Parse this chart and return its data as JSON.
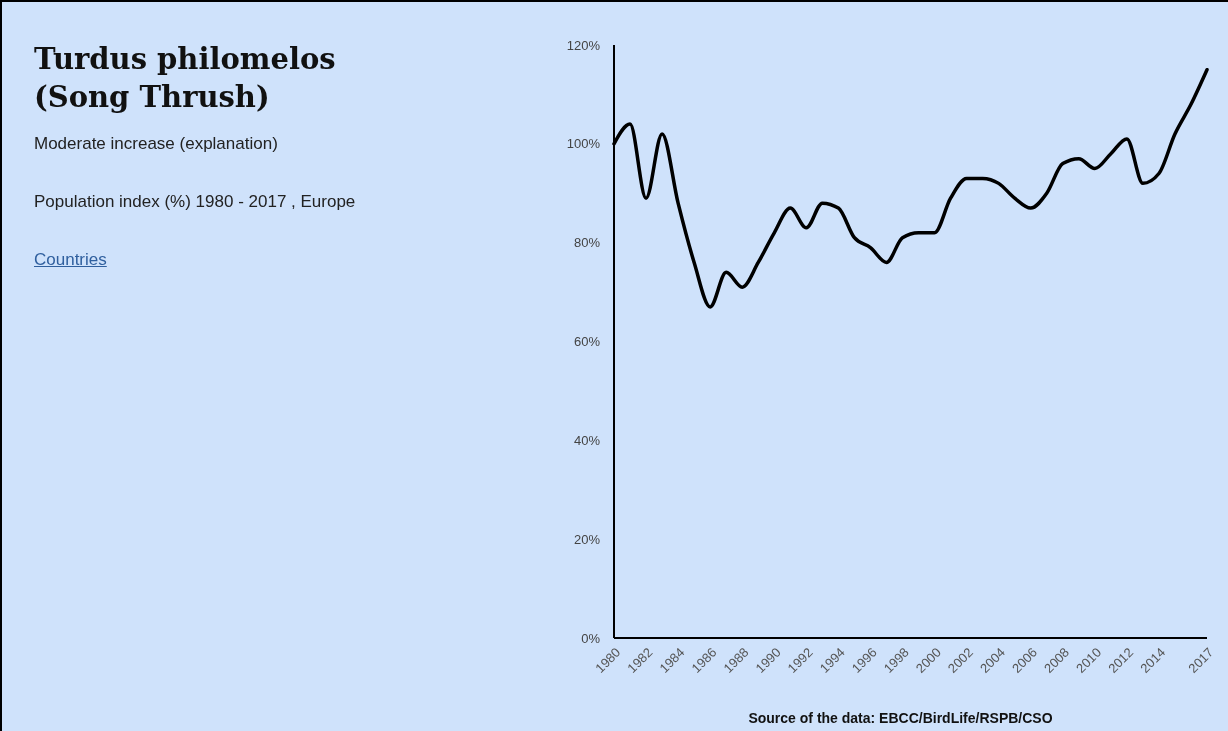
{
  "chart_data": {
    "type": "line",
    "title": "Turdus philomelos (Song Thrush)",
    "subtitle": "Moderate increase (explanation)",
    "annotations": [
      "Population index (%) 1980 - 2017 , Europe",
      "Countries",
      "Source of the data: EBCC/BirdLife/RSPB/CSO"
    ],
    "categories": [
      "1980",
      null,
      "1982",
      null,
      "1984",
      null,
      "1986",
      null,
      "1988",
      null,
      "1990",
      null,
      "1992",
      null,
      "1994",
      null,
      "1996",
      null,
      "1998",
      null,
      "2000",
      null,
      "2002",
      null,
      "2004",
      null,
      "2006",
      null,
      "2008",
      null,
      "2010",
      null,
      "2012",
      null,
      "2014",
      null,
      null,
      "2017"
    ],
    "series": [
      {
        "color": "#000000",
        "values": [
          100,
          104,
          89,
          102,
          88,
          76,
          67,
          74,
          71,
          76,
          82,
          87,
          83,
          88,
          87,
          81,
          79,
          76,
          81,
          82,
          82,
          89,
          93,
          93,
          92,
          89,
          87,
          90,
          96,
          97,
          95,
          98,
          101,
          92,
          94,
          102,
          108,
          115
        ]
      }
    ],
    "ylim": [
      0,
      120
    ],
    "yticks": [
      {
        "value": 0,
        "label": "0%"
      },
      {
        "value": 20,
        "label": "20%"
      },
      {
        "value": 40,
        "label": "40%"
      },
      {
        "value": 60,
        "label": "60%"
      },
      {
        "value": 80,
        "label": "80%"
      },
      {
        "value": 100,
        "label": "100%"
      },
      {
        "value": 120,
        "label": "120%"
      }
    ],
    "grid": false
  }
}
